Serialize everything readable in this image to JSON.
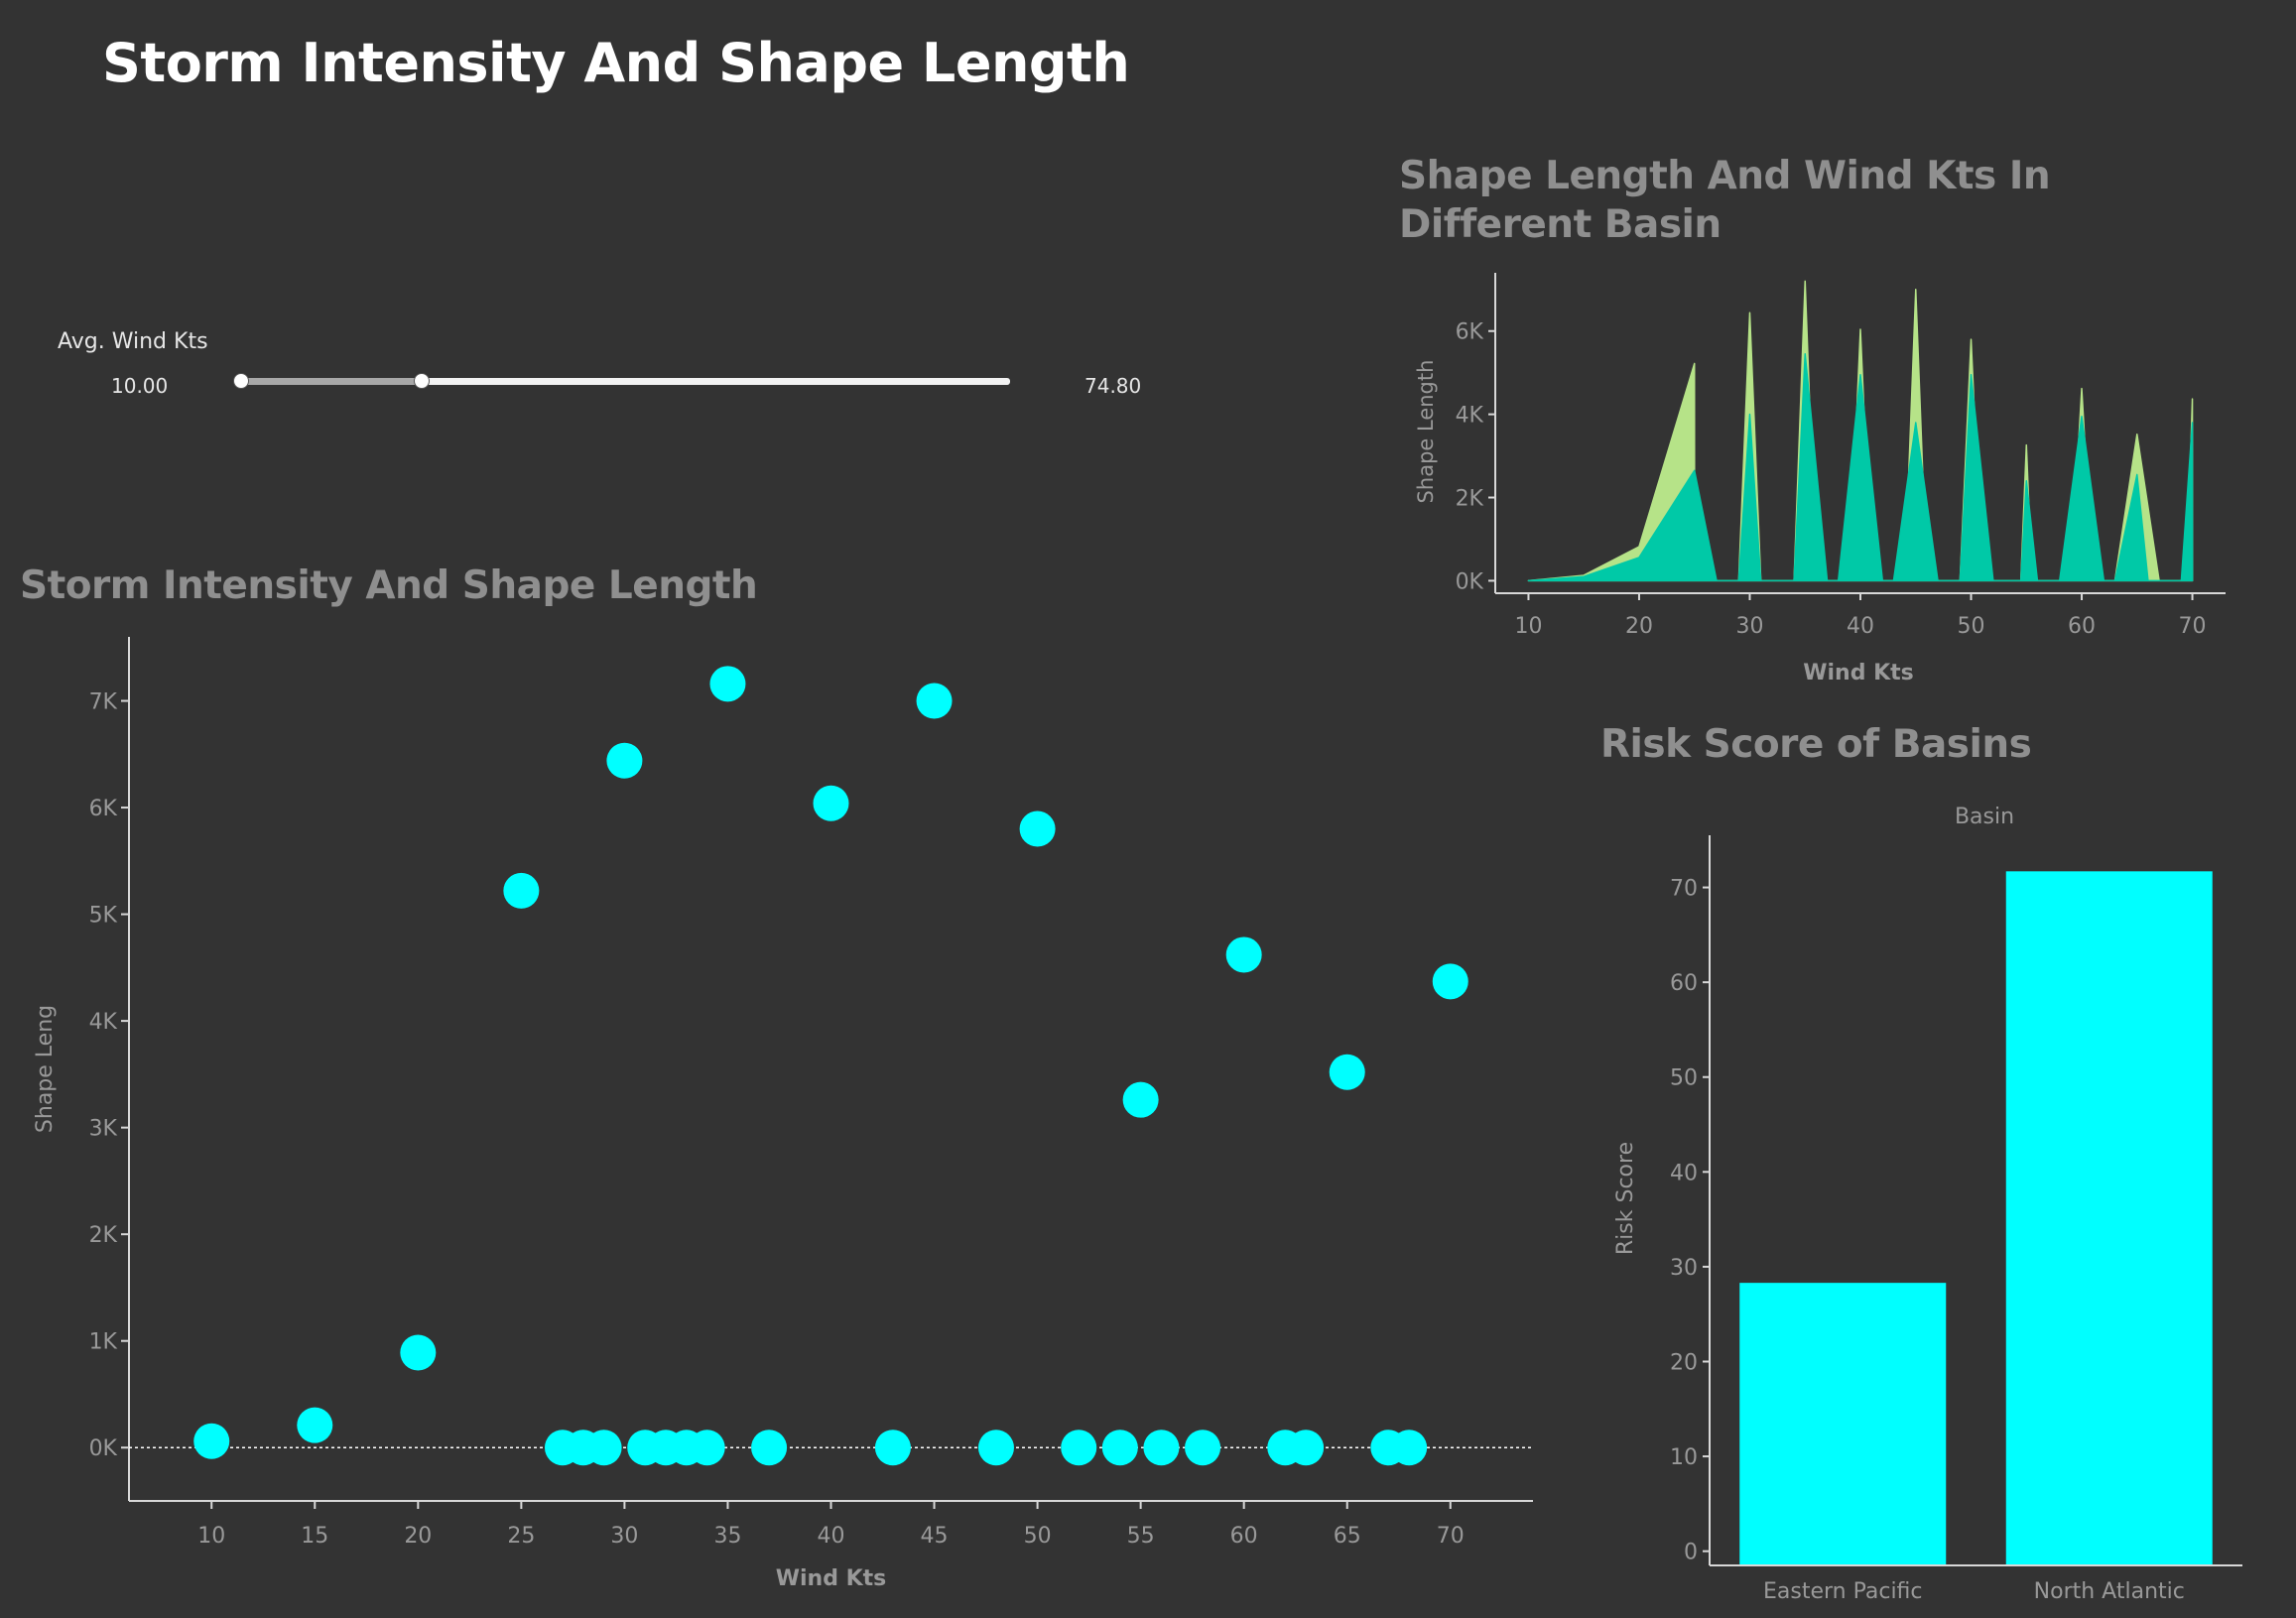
{
  "page_title": "Storm Intensity And Shape Length",
  "colors": {
    "background": "#333333",
    "cyan": "#00ffff",
    "teal": "#00c9a7",
    "lime": "#b6e388",
    "axis": "#d8d8d8",
    "tick_text": "#999999"
  },
  "filter": {
    "label": "Avg. Wind Kts",
    "min_label": "10.00",
    "max_label": "74.80",
    "range": [
      10.0,
      74.8
    ],
    "selected_low": 10.0,
    "selected_high": 25.2
  },
  "chart_data": [
    {
      "id": "scatter",
      "type": "scatter",
      "title": "Storm Intensity And Shape Length",
      "xlabel": "Wind Kts",
      "ylabel": "Shape Leng",
      "xlim": [
        6,
        74
      ],
      "ylim": [
        -500,
        7600
      ],
      "x_ticks": [
        10,
        15,
        20,
        25,
        30,
        35,
        40,
        45,
        50,
        55,
        60,
        65,
        70
      ],
      "y_ticks": [
        0,
        1000,
        2000,
        3000,
        4000,
        5000,
        6000,
        7000
      ],
      "y_tick_labels": [
        "0K",
        "1K",
        "2K",
        "3K",
        "4K",
        "5K",
        "6K",
        "7K"
      ],
      "reference_line": 0,
      "color": "#00ffff",
      "points": [
        {
          "x": 10,
          "y": 60
        },
        {
          "x": 15,
          "y": 210
        },
        {
          "x": 20,
          "y": 890
        },
        {
          "x": 25,
          "y": 5220
        },
        {
          "x": 30,
          "y": 6440
        },
        {
          "x": 35,
          "y": 7160
        },
        {
          "x": 40,
          "y": 6040
        },
        {
          "x": 45,
          "y": 7000
        },
        {
          "x": 50,
          "y": 5800
        },
        {
          "x": 55,
          "y": 3260
        },
        {
          "x": 60,
          "y": 4620
        },
        {
          "x": 65,
          "y": 3520
        },
        {
          "x": 70,
          "y": 4370
        },
        {
          "x": 27,
          "y": 0
        },
        {
          "x": 28,
          "y": 0
        },
        {
          "x": 29,
          "y": 0
        },
        {
          "x": 31,
          "y": 0
        },
        {
          "x": 32,
          "y": 0
        },
        {
          "x": 33,
          "y": 0
        },
        {
          "x": 34,
          "y": 0
        },
        {
          "x": 37,
          "y": 0
        },
        {
          "x": 43,
          "y": 0
        },
        {
          "x": 48,
          "y": 0
        },
        {
          "x": 52,
          "y": 0
        },
        {
          "x": 54,
          "y": 0
        },
        {
          "x": 56,
          "y": 0
        },
        {
          "x": 58,
          "y": 0
        },
        {
          "x": 62,
          "y": 0
        },
        {
          "x": 63,
          "y": 0
        },
        {
          "x": 67,
          "y": 0
        },
        {
          "x": 68,
          "y": 0
        }
      ]
    },
    {
      "id": "area",
      "type": "area",
      "title": "Shape Length And Wind Kts In Different Basin",
      "xlabel": "Wind Kts",
      "ylabel": "Shape Length",
      "xlim": [
        7,
        73
      ],
      "ylim": [
        -300,
        7400
      ],
      "x_ticks": [
        10,
        20,
        30,
        40,
        50,
        60,
        70
      ],
      "y_ticks": [
        0,
        2000,
        4000,
        6000
      ],
      "y_tick_labels": [
        "0K",
        "2K",
        "4K",
        "6K"
      ],
      "series": [
        {
          "color": "#b6e388",
          "points": [
            [
              10,
              0
            ],
            [
              15,
              130
            ],
            [
              20,
              820
            ],
            [
              25,
              5220
            ],
            [
              25.01,
              0
            ],
            [
              29,
              0
            ],
            [
              30,
              6440
            ],
            [
              31,
              0
            ],
            [
              34,
              0
            ],
            [
              35,
              7200
            ],
            [
              36,
              0
            ],
            [
              39,
              0
            ],
            [
              40,
              6040
            ],
            [
              41,
              0
            ],
            [
              44,
              0
            ],
            [
              45,
              7000
            ],
            [
              46,
              0
            ],
            [
              49,
              0
            ],
            [
              50,
              5800
            ],
            [
              51,
              0
            ],
            [
              54.5,
              0
            ],
            [
              55,
              3260
            ],
            [
              55.5,
              0
            ],
            [
              59,
              0
            ],
            [
              60,
              4620
            ],
            [
              61,
              0
            ],
            [
              63,
              0
            ],
            [
              65,
              3520
            ],
            [
              67,
              0
            ],
            [
              69.5,
              0
            ],
            [
              70,
              4370
            ],
            [
              70.01,
              0
            ]
          ]
        },
        {
          "color": "#00c9a7",
          "points": [
            [
              10,
              0
            ],
            [
              15,
              100
            ],
            [
              20,
              560
            ],
            [
              25,
              2650
            ],
            [
              27,
              0
            ],
            [
              29,
              0
            ],
            [
              30,
              4000
            ],
            [
              31,
              0
            ],
            [
              34,
              0
            ],
            [
              35,
              5450
            ],
            [
              37,
              0
            ],
            [
              38,
              0
            ],
            [
              40,
              4950
            ],
            [
              42,
              0
            ],
            [
              43,
              0
            ],
            [
              45,
              3800
            ],
            [
              47,
              0
            ],
            [
              49,
              0
            ],
            [
              50,
              4950
            ],
            [
              52,
              0
            ],
            [
              54.5,
              0
            ],
            [
              55,
              2400
            ],
            [
              56,
              0
            ],
            [
              58,
              0
            ],
            [
              60,
              3950
            ],
            [
              62,
              0
            ],
            [
              63,
              0
            ],
            [
              65,
              2550
            ],
            [
              66,
              0
            ],
            [
              69,
              0
            ],
            [
              70,
              3800
            ],
            [
              70.01,
              0
            ]
          ]
        }
      ]
    },
    {
      "id": "bar",
      "type": "bar",
      "title": "Risk Score of Basins",
      "header": "Basin",
      "ylabel": "Risk Score",
      "categories": [
        "Eastern Pacific",
        "North Atlantic"
      ],
      "values": [
        28.3,
        71.7
      ],
      "ylim": [
        -1.5,
        75.5
      ],
      "y_ticks": [
        0,
        10,
        20,
        30,
        40,
        50,
        60,
        70
      ],
      "color": "#00ffff"
    }
  ]
}
